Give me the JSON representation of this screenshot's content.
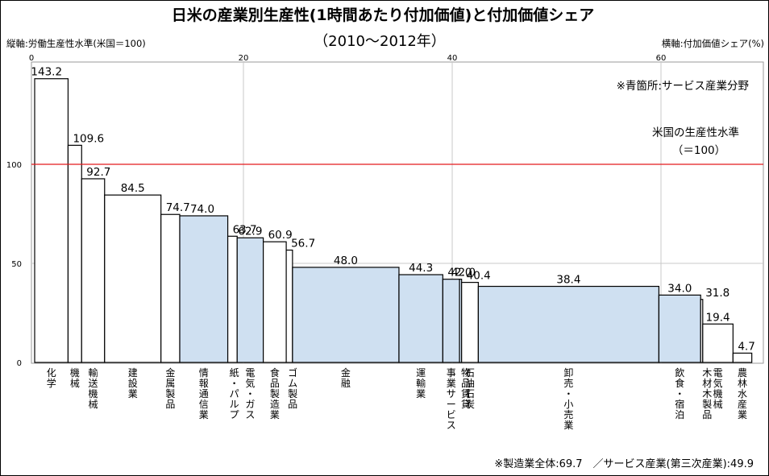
{
  "chart_data": {
    "type": "bar",
    "title": "日米の産業別生産性(1時間あたり付加価値)と付加価値シェア",
    "subtitle": "（2010～2012年）",
    "ylabel": "縦軸:労働生産性水準(米国＝100)",
    "xlabel": "横軸:付加価値シェア(%)",
    "xlim": [
      0,
      69
    ],
    "ylim": [
      0,
      145
    ],
    "x_ticks": [
      "0",
      "20",
      "40",
      "60"
    ],
    "y_ticks": [
      "0",
      "50",
      "100"
    ],
    "grid": true,
    "reference": {
      "value": 100,
      "label_line1": "米国の生産性水準",
      "label_line2": "（＝100）",
      "color": "#e41a1c"
    },
    "note_service": "※青箇所:サービス産業分野",
    "footer": "※製造業全体:69.7　／サービス産業(第三次産業):49.9",
    "colors": {
      "manufacturing": "#ffffff",
      "service": "#cfe0f1",
      "edge": "#000000"
    },
    "series": [
      {
        "label": "化学",
        "share": 3.2,
        "value": 143.2,
        "service": false
      },
      {
        "label": "機械",
        "share": 1.3,
        "value": 109.6,
        "service": false
      },
      {
        "label": "輸送機械",
        "share": 2.2,
        "value": 92.7,
        "service": false
      },
      {
        "label": "建設業",
        "share": 5.4,
        "value": 84.5,
        "service": false
      },
      {
        "label": "金属製品",
        "share": 1.8,
        "value": 74.7,
        "service": false
      },
      {
        "label": "情報通信業",
        "share": 4.6,
        "value": 74.0,
        "service": true
      },
      {
        "label": "紙・パルプ",
        "share": 0.9,
        "value": 63.7,
        "service": false
      },
      {
        "label": "電気・ガス",
        "share": 2.5,
        "value": 62.9,
        "service": true
      },
      {
        "label": "食品製造業",
        "share": 2.2,
        "value": 60.9,
        "service": false
      },
      {
        "label": "ゴム製品",
        "share": 0.6,
        "value": 56.7,
        "service": false
      },
      {
        "label": "金融",
        "share": 10.2,
        "value": 48.0,
        "service": true
      },
      {
        "label": "運輸業",
        "share": 4.2,
        "value": 44.3,
        "service": true
      },
      {
        "label": "事業サービス",
        "share": 1.6,
        "value": 42.0,
        "service": true
      },
      {
        "label": "物品賃貸",
        "share": 0.2,
        "value": 42.0,
        "service": true
      },
      {
        "label": "石油石炭",
        "share": 1.6,
        "value": 40.4,
        "service": false
      },
      {
        "label": "卸売・小売業",
        "share": 17.3,
        "value": 38.4,
        "service": true
      },
      {
        "label": "飲食・宿泊",
        "share": 4.0,
        "value": 34.0,
        "service": true
      },
      {
        "label": "木材木製品",
        "share": 0.2,
        "value": 31.8,
        "service": false
      },
      {
        "label": "電気機械",
        "share": 2.9,
        "value": 19.4,
        "service": false
      },
      {
        "label": "農林水産業",
        "share": 1.8,
        "value": 4.7,
        "service": false
      }
    ]
  }
}
